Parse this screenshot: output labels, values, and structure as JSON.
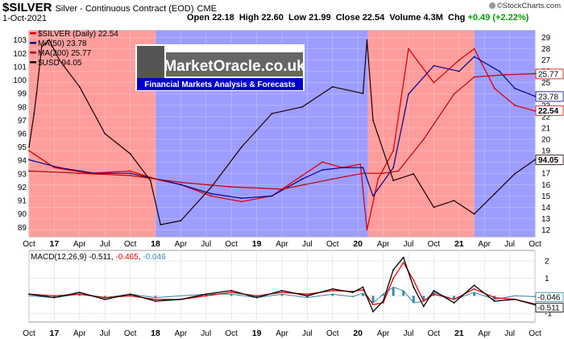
{
  "header": {
    "symbol": "$SILVER",
    "subtitle": "Silver - Continuous Contract (EOD)",
    "exchange": "CME",
    "date": "1-Oct-2021",
    "open_label": "Open",
    "open": "22.18",
    "high_label": "High",
    "high": "22.60",
    "low_label": "Low",
    "low": "21.99",
    "close_label": "Close",
    "close": "22.54",
    "volume_label": "Volume",
    "volume": "4.3M",
    "chg_label": "Chg",
    "chg": "+0.49 (+2.22%)",
    "credit": "©StockCharts.com"
  },
  "logo": {
    "title": "MarketOracle.co.uk",
    "tagline": "Financial Markets Analysis & Forecasts"
  },
  "legend": [
    {
      "text": "$SILVER (Daily) 22.54",
      "color": "#e00000"
    },
    {
      "text": "MA(50) 23.78",
      "color": "#00008b"
    },
    {
      "text": "MA(200) 25.77",
      "color": "#c00000"
    },
    {
      "text": "$USD 94.05",
      "color": "#1a0000"
    }
  ],
  "macd_legend": {
    "label": "MACD(12,26,9)",
    "v1": "-0.511",
    "v2": "-0.465",
    "v3": "-0.046"
  },
  "colors": {
    "red_zone": "#ff9d9d",
    "blue_zone": "#9d9dff",
    "silver": "#e00000",
    "ma50": "#00008b",
    "ma200": "#c00000",
    "usd": "#1a0000",
    "usd_alt": "#8b0080",
    "macd": "#000000",
    "signal": "#e00000",
    "hist": "#3d8aa8"
  },
  "chart_data": [
    {
      "type": "line",
      "title": "$SILVER",
      "x_ticks": [
        "Oct",
        "17",
        "Apr",
        "Jul",
        "Oct",
        "18",
        "Apr",
        "Jul",
        "Oct",
        "19",
        "Apr",
        "Jul",
        "Oct",
        "20",
        "Apr",
        "Jul",
        "Oct",
        "21",
        "Apr",
        "Jul",
        "Oct"
      ],
      "x_range": [
        "2016-10",
        "2021-10"
      ],
      "y_left_ticks": [
        103,
        102,
        101,
        100,
        99,
        98,
        97,
        96,
        95,
        94,
        93,
        92,
        91,
        90,
        89
      ],
      "y_left_label": "$USD",
      "y_left_range": [
        88.3,
        103.7
      ],
      "y_right_ticks": [
        29,
        28,
        27,
        26,
        25,
        24,
        23,
        22,
        21,
        20,
        19,
        18,
        17,
        16,
        15,
        14,
        13,
        12
      ],
      "y_right_label": "$SILVER",
      "y_right_range": [
        11.4,
        29.6
      ],
      "right_value_labels": [
        "25.77",
        "23.78",
        "22.54",
        "94.05"
      ],
      "zones": [
        {
          "from": 0.0,
          "to": 0.25,
          "color": "red"
        },
        {
          "from": 0.25,
          "to": 0.67,
          "color": "blue"
        },
        {
          "from": 0.67,
          "to": 0.88,
          "color": "red"
        },
        {
          "from": 0.88,
          "to": 1.0,
          "color": "blue"
        }
      ],
      "series": [
        {
          "name": "$SILVER (Daily)",
          "axis": "right",
          "color": "silver",
          "x": [
            0.0,
            0.05,
            0.12,
            0.2,
            0.25,
            0.3,
            0.36,
            0.42,
            0.48,
            0.54,
            0.58,
            0.62,
            0.655,
            0.668,
            0.69,
            0.72,
            0.75,
            0.8,
            0.85,
            0.88,
            0.92,
            0.96,
            1.0
          ],
          "values": [
            19.0,
            17.5,
            17.0,
            17.2,
            16.5,
            16.0,
            15.0,
            14.5,
            15.0,
            16.8,
            18.0,
            17.5,
            17.8,
            12.0,
            16.5,
            19.0,
            28.0,
            25.0,
            27.0,
            28.0,
            24.5,
            23.0,
            22.5
          ]
        },
        {
          "name": "MA(50)",
          "axis": "right",
          "color": "ma50",
          "x": [
            0.0,
            0.06,
            0.13,
            0.2,
            0.25,
            0.3,
            0.36,
            0.42,
            0.48,
            0.54,
            0.58,
            0.62,
            0.66,
            0.68,
            0.72,
            0.75,
            0.8,
            0.85,
            0.88,
            0.93,
            0.96,
            1.0
          ],
          "values": [
            18.2,
            17.5,
            17.0,
            17.0,
            16.5,
            16.0,
            15.2,
            14.8,
            15.0,
            16.5,
            17.3,
            17.5,
            17.5,
            15.0,
            17.5,
            24.0,
            26.5,
            26.0,
            27.3,
            26.0,
            24.5,
            23.8
          ]
        },
        {
          "name": "MA(200)",
          "axis": "right",
          "color": "ma200",
          "x": [
            0.0,
            0.1,
            0.2,
            0.3,
            0.4,
            0.5,
            0.6,
            0.66,
            0.7,
            0.73,
            0.78,
            0.84,
            0.88,
            0.94,
            1.0
          ],
          "values": [
            17.2,
            17.0,
            16.8,
            16.2,
            15.8,
            15.6,
            16.5,
            17.0,
            17.0,
            17.2,
            20.0,
            24.0,
            25.5,
            25.7,
            25.8
          ]
        },
        {
          "name": "$USD",
          "axis": "left",
          "color": "usd",
          "x": [
            0.0,
            0.01,
            0.015,
            0.025,
            0.04,
            0.06,
            0.1,
            0.15,
            0.2,
            0.24,
            0.26,
            0.3,
            0.36,
            0.42,
            0.48,
            0.54,
            0.6,
            0.66,
            0.668,
            0.68,
            0.72,
            0.76,
            0.8,
            0.84,
            0.88,
            0.92,
            0.96,
            1.0
          ],
          "values": [
            95.0,
            97.5,
            99.0,
            102.5,
            103.0,
            101.5,
            99.5,
            96.0,
            94.5,
            92.5,
            89.2,
            89.5,
            92.0,
            95.0,
            97.5,
            98.0,
            99.5,
            99.0,
            103.0,
            97.0,
            92.5,
            93.0,
            90.5,
            91.0,
            90.0,
            91.5,
            93.0,
            94.05
          ]
        }
      ]
    },
    {
      "type": "line",
      "title": "MACD(12,26,9)",
      "y_ticks": [
        2,
        1,
        0,
        -1
      ],
      "y_range": [
        -1.5,
        2.6
      ],
      "right_value_labels": [
        "-0.046",
        "-0.511"
      ],
      "series": [
        {
          "name": "MACD(12,26,9)",
          "color": "macd",
          "x": [
            0.0,
            0.05,
            0.1,
            0.15,
            0.2,
            0.25,
            0.3,
            0.35,
            0.4,
            0.45,
            0.5,
            0.55,
            0.6,
            0.64,
            0.66,
            0.68,
            0.7,
            0.72,
            0.74,
            0.76,
            0.78,
            0.8,
            0.84,
            0.88,
            0.92,
            0.96,
            1.0
          ],
          "values": [
            0.1,
            -0.1,
            0.2,
            -0.2,
            0.1,
            -0.3,
            -0.2,
            0.1,
            0.3,
            -0.1,
            0.3,
            0.0,
            0.4,
            0.2,
            0.5,
            -0.9,
            -0.3,
            1.5,
            2.2,
            0.5,
            -0.6,
            0.3,
            -0.4,
            0.6,
            -0.3,
            -0.2,
            -0.51
          ]
        },
        {
          "name": "signal",
          "color": "signal",
          "x": [
            0.0,
            0.05,
            0.1,
            0.15,
            0.2,
            0.25,
            0.3,
            0.35,
            0.4,
            0.45,
            0.5,
            0.55,
            0.6,
            0.64,
            0.66,
            0.68,
            0.7,
            0.72,
            0.74,
            0.76,
            0.78,
            0.8,
            0.84,
            0.88,
            0.92,
            0.96,
            1.0
          ],
          "values": [
            0.1,
            0.0,
            0.1,
            -0.1,
            0.0,
            -0.2,
            -0.2,
            0.0,
            0.2,
            0.0,
            0.2,
            0.1,
            0.3,
            0.25,
            0.35,
            -0.5,
            -0.4,
            1.0,
            1.9,
            0.9,
            -0.3,
            0.1,
            -0.2,
            0.4,
            -0.1,
            -0.2,
            -0.465
          ]
        },
        {
          "name": "histogram",
          "color": "hist",
          "x": [
            0.0,
            0.05,
            0.1,
            0.15,
            0.2,
            0.25,
            0.3,
            0.35,
            0.4,
            0.45,
            0.5,
            0.55,
            0.6,
            0.64,
            0.66,
            0.68,
            0.7,
            0.72,
            0.74,
            0.76,
            0.78,
            0.8,
            0.84,
            0.88,
            0.92,
            0.96,
            1.0
          ],
          "values": [
            0.0,
            -0.1,
            0.1,
            -0.1,
            0.1,
            -0.1,
            0.0,
            0.1,
            0.1,
            -0.1,
            0.1,
            -0.1,
            0.1,
            -0.05,
            0.15,
            -0.4,
            0.1,
            0.5,
            0.3,
            -0.4,
            -0.3,
            0.2,
            -0.2,
            0.2,
            -0.2,
            0.0,
            -0.046
          ]
        }
      ]
    }
  ]
}
